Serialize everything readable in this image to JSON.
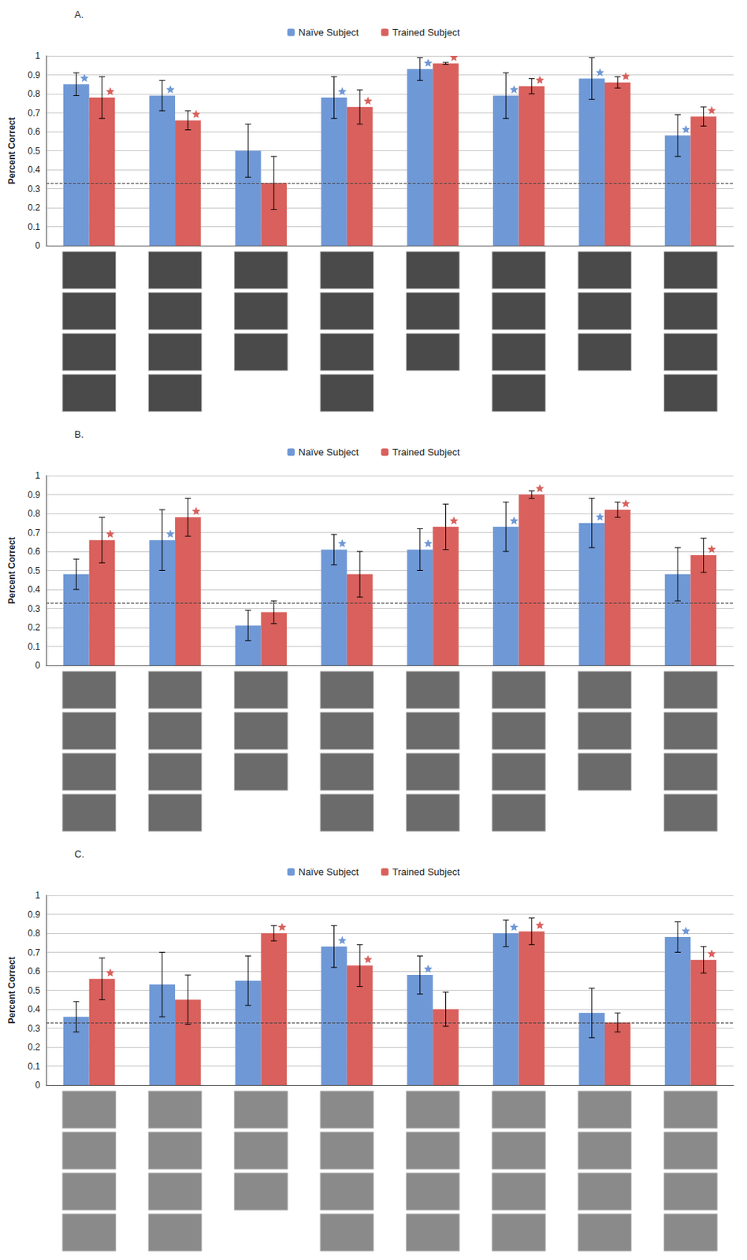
{
  "chart_data": [
    {
      "type": "bar",
      "title": "A.",
      "y_label": "Percent Correct",
      "categories": [
        null,
        null,
        null,
        null,
        null,
        null,
        null,
        null
      ],
      "ylim": [
        0,
        1
      ],
      "yticks": [
        0,
        0.1,
        0.2,
        0.3,
        0.4,
        0.5,
        0.6,
        0.7,
        0.8,
        0.9,
        1
      ],
      "grid": true,
      "legend": "top",
      "chance": 0.333,
      "series": [
        {
          "name": "Naïve Subject",
          "color": "#6f98d6",
          "values": [
            0.85,
            0.79,
            0.5,
            0.78,
            0.93,
            0.79,
            0.88,
            0.58
          ],
          "errors": [
            0.06,
            0.08,
            0.14,
            0.11,
            0.06,
            0.12,
            0.11,
            0.11
          ],
          "significant": [
            true,
            true,
            false,
            true,
            true,
            true,
            true,
            true
          ]
        },
        {
          "name": "Trained Subject",
          "color": "#d9605c",
          "values": [
            0.78,
            0.66,
            0.33,
            0.73,
            0.96,
            0.84,
            0.86,
            0.68
          ],
          "errors": [
            0.11,
            0.05,
            0.14,
            0.09,
            0.005,
            0.04,
            0.03,
            0.05
          ],
          "significant": [
            true,
            true,
            false,
            true,
            true,
            true,
            true,
            true
          ]
        }
      ]
    },
    {
      "type": "bar",
      "title": "B.",
      "y_label": "Percent Correct",
      "categories": [
        null,
        null,
        null,
        null,
        null,
        null,
        null,
        null
      ],
      "ylim": [
        0,
        1
      ],
      "yticks": [
        0,
        0.1,
        0.2,
        0.3,
        0.4,
        0.5,
        0.6,
        0.7,
        0.8,
        0.9,
        1
      ],
      "grid": true,
      "legend": "top",
      "chance": 0.333,
      "series": [
        {
          "name": "Naïve Subject",
          "color": "#6f98d6",
          "values": [
            0.48,
            0.66,
            0.21,
            0.61,
            0.61,
            0.73,
            0.75,
            0.48
          ],
          "errors": [
            0.08,
            0.16,
            0.08,
            0.08,
            0.11,
            0.13,
            0.13,
            0.14
          ],
          "significant": [
            false,
            true,
            false,
            true,
            true,
            true,
            true,
            false
          ]
        },
        {
          "name": "Trained Subject",
          "color": "#d9605c",
          "values": [
            0.66,
            0.78,
            0.28,
            0.48,
            0.73,
            0.9,
            0.82,
            0.58
          ],
          "errors": [
            0.12,
            0.1,
            0.06,
            0.12,
            0.12,
            0.02,
            0.04,
            0.09
          ],
          "significant": [
            true,
            true,
            false,
            false,
            true,
            true,
            true,
            true
          ]
        }
      ]
    },
    {
      "type": "bar",
      "title": "C.",
      "y_label": "Percent Correct",
      "categories": [
        null,
        null,
        null,
        null,
        null,
        null,
        null,
        null
      ],
      "ylim": [
        0,
        1
      ],
      "yticks": [
        0,
        0.1,
        0.2,
        0.3,
        0.4,
        0.5,
        0.6,
        0.7,
        0.8,
        0.9,
        1
      ],
      "grid": true,
      "legend": "top",
      "chance": 0.333,
      "series": [
        {
          "name": "Naïve Subject",
          "color": "#6f98d6",
          "values": [
            0.36,
            0.53,
            0.55,
            0.73,
            0.58,
            0.8,
            0.38,
            0.78
          ],
          "errors": [
            0.08,
            0.17,
            0.13,
            0.11,
            0.1,
            0.07,
            0.13,
            0.08
          ],
          "significant": [
            false,
            false,
            false,
            true,
            true,
            true,
            false,
            true
          ]
        },
        {
          "name": "Trained Subject",
          "color": "#d9605c",
          "values": [
            0.56,
            0.45,
            0.8,
            0.63,
            0.4,
            0.81,
            0.33,
            0.66
          ],
          "errors": [
            0.11,
            0.13,
            0.04,
            0.11,
            0.09,
            0.07,
            0.05,
            0.07
          ],
          "significant": [
            true,
            false,
            true,
            true,
            false,
            true,
            false,
            true
          ]
        }
      ]
    }
  ]
}
